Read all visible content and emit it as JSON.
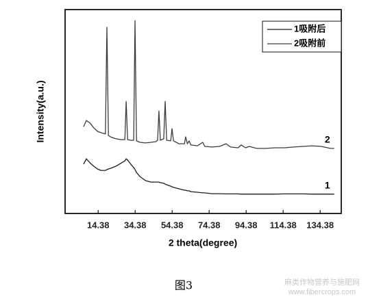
{
  "chart_data": {
    "type": "line",
    "xlabel": "2 theta(degree)",
    "ylabel": "Intensity(a.u.)",
    "xlim": [
      -3.5,
      145.8
    ],
    "xticks": [
      14.38,
      34.38,
      54.38,
      74.38,
      94.38,
      114.38,
      134.38
    ],
    "ylim": [
      0,
      100
    ],
    "legend": "top-right",
    "x": [
      6.5,
      8,
      10,
      12,
      14,
      16,
      18.3,
      19.1,
      19.9,
      21,
      24,
      27,
      28.8,
      29.5,
      30.3,
      32,
      33.6,
      34.3,
      35.1,
      37,
      40,
      43,
      45.5,
      46.5,
      47.2,
      48,
      49.8,
      50.6,
      51.4,
      53.6,
      54.3,
      55.1,
      58,
      61,
      61.7,
      62.6,
      63.5,
      64.5,
      68,
      70.9,
      72,
      76,
      80,
      83.5,
      86,
      90,
      91.7,
      94,
      96.1,
      100,
      105,
      110,
      115,
      120,
      125,
      130,
      135,
      140,
      142
    ],
    "series": [
      {
        "name": "1吸附后",
        "color": "#1a1a1a",
        "label": "1",
        "values": [
          24.2,
          26.8,
          24.8,
          23.2,
          21.8,
          21.1,
          21.1,
          21.5,
          21.8,
          22.1,
          23.2,
          24.8,
          25.8,
          26.8,
          26.2,
          24.2,
          22.5,
          21.5,
          20.1,
          18.1,
          16.1,
          15.4,
          15.4,
          15.4,
          15.4,
          15.1,
          14.8,
          14.4,
          14.1,
          13.4,
          13.1,
          12.8,
          12.1,
          11.4,
          11.4,
          11.1,
          11.1,
          10.7,
          10.4,
          10.1,
          10.1,
          9.7,
          9.7,
          9.6,
          9.6,
          9.6,
          9.5,
          9.5,
          9.5,
          9.5,
          9.5,
          9.5,
          9.6,
          9.6,
          9.6,
          9.5,
          9.5,
          9.5,
          9.5
        ]
      },
      {
        "name": "2吸附前",
        "color": "#3a3a3a",
        "label": "2",
        "values": [
          42.6,
          45.6,
          44.3,
          42,
          40.3,
          39.6,
          39,
          91.3,
          38.3,
          37.6,
          36.6,
          36.2,
          36.2,
          55,
          36.2,
          35.9,
          35.9,
          94.6,
          35.6,
          34.9,
          34.6,
          34.9,
          35.2,
          35.9,
          50.3,
          35.9,
          36.6,
          55,
          35.9,
          35.6,
          41.6,
          35.6,
          34.2,
          34.2,
          37.6,
          34.2,
          35.6,
          33.6,
          33.2,
          34.9,
          32.9,
          32.6,
          32.9,
          34.2,
          32.6,
          32.2,
          33.6,
          32.2,
          32.9,
          31.9,
          31.9,
          32.2,
          32.2,
          32.6,
          32.9,
          33.2,
          32.9,
          31.9,
          31.9
        ]
      }
    ]
  },
  "caption": "图3",
  "watermark": {
    "line1": "麻类作物营养与施肥网",
    "line2": "www.fibercrops.com"
  }
}
